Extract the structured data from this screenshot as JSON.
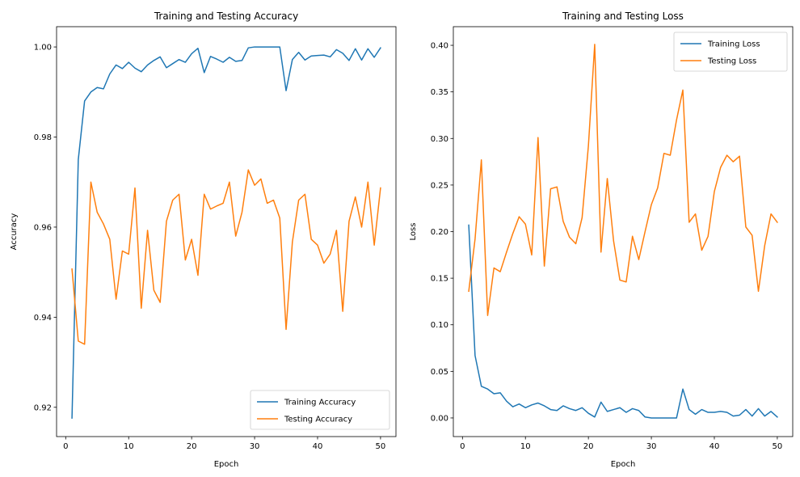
{
  "chart_data": [
    {
      "type": "line",
      "title": "Training and Testing Accuracy",
      "xlabel": "Epoch",
      "ylabel": "Accuracy",
      "xlim": [
        -1.45,
        52.45
      ],
      "ylim": [
        0.9135,
        1.0045
      ],
      "xticks": [
        0,
        10,
        20,
        30,
        40,
        50
      ],
      "yticks": [
        0.92,
        0.94,
        0.96,
        0.98,
        1.0
      ],
      "ytick_labels": [
        "0.92",
        "0.94",
        "0.96",
        "0.98",
        "1.00"
      ],
      "legend": "lower right",
      "series": [
        {
          "name": "Training Accuracy",
          "color": "#1f77b4",
          "x": [
            1,
            2,
            3,
            4,
            5,
            6,
            7,
            8,
            9,
            10,
            11,
            12,
            13,
            14,
            15,
            16,
            17,
            18,
            19,
            20,
            21,
            22,
            23,
            24,
            25,
            26,
            27,
            28,
            29,
            30,
            31,
            32,
            33,
            34,
            35,
            36,
            37,
            38,
            39,
            40,
            41,
            42,
            43,
            44,
            45,
            46,
            47,
            48,
            49,
            50
          ],
          "values": [
            0.9176,
            0.975,
            0.988,
            0.99,
            0.991,
            0.9907,
            0.994,
            0.996,
            0.9952,
            0.9966,
            0.9953,
            0.9945,
            0.996,
            0.997,
            0.9978,
            0.9954,
            0.9963,
            0.9972,
            0.9966,
            0.9985,
            0.9997,
            0.9943,
            0.9979,
            0.9973,
            0.9966,
            0.9977,
            0.9968,
            0.997,
            0.9998,
            1.0,
            1.0,
            1.0,
            1.0,
            1.0,
            0.9903,
            0.9972,
            0.9988,
            0.9971,
            0.998,
            0.9981,
            0.9982,
            0.9978,
            0.9994,
            0.9986,
            0.997,
            0.9996,
            0.9971,
            0.9996,
            0.9977,
            0.9998
          ]
        },
        {
          "name": "Testing Accuracy",
          "color": "#ff7f0e",
          "x": [
            1,
            2,
            3,
            4,
            5,
            6,
            7,
            8,
            9,
            10,
            11,
            12,
            13,
            14,
            15,
            16,
            17,
            18,
            19,
            20,
            21,
            22,
            23,
            24,
            25,
            26,
            27,
            28,
            29,
            30,
            31,
            32,
            33,
            34,
            35,
            36,
            37,
            38,
            39,
            40,
            41,
            42,
            43,
            44,
            45,
            46,
            47,
            48,
            49,
            50
          ],
          "values": [
            0.9507,
            0.9347,
            0.934,
            0.97,
            0.9633,
            0.9607,
            0.9573,
            0.944,
            0.9547,
            0.954,
            0.9687,
            0.942,
            0.9593,
            0.946,
            0.9433,
            0.9613,
            0.966,
            0.9673,
            0.9527,
            0.9573,
            0.9493,
            0.9673,
            0.964,
            0.9647,
            0.9653,
            0.97,
            0.958,
            0.9633,
            0.9727,
            0.9693,
            0.9707,
            0.9653,
            0.966,
            0.962,
            0.9373,
            0.9567,
            0.966,
            0.9673,
            0.9573,
            0.956,
            0.952,
            0.954,
            0.9593,
            0.9413,
            0.9613,
            0.9667,
            0.96,
            0.97,
            0.956,
            0.9687
          ]
        }
      ]
    },
    {
      "type": "line",
      "title": "Training and Testing Loss",
      "xlabel": "Epoch",
      "ylabel": "Loss",
      "xlim": [
        -1.45,
        52.45
      ],
      "ylim": [
        -0.02,
        0.42
      ],
      "xticks": [
        0,
        10,
        20,
        30,
        40,
        50
      ],
      "yticks": [
        0.0,
        0.05,
        0.1,
        0.15,
        0.2,
        0.25,
        0.3,
        0.35,
        0.4
      ],
      "ytick_labels": [
        "0.00",
        "0.05",
        "0.10",
        "0.15",
        "0.20",
        "0.25",
        "0.30",
        "0.35",
        "0.40"
      ],
      "legend": "upper right",
      "series": [
        {
          "name": "Training Loss",
          "color": "#1f77b4",
          "x": [
            1,
            2,
            3,
            4,
            5,
            6,
            7,
            8,
            9,
            10,
            11,
            12,
            13,
            14,
            15,
            16,
            17,
            18,
            19,
            20,
            21,
            22,
            23,
            24,
            25,
            26,
            27,
            28,
            29,
            30,
            31,
            32,
            33,
            34,
            35,
            36,
            37,
            38,
            39,
            40,
            41,
            42,
            43,
            44,
            45,
            46,
            47,
            48,
            49,
            50
          ],
          "values": [
            0.207,
            0.067,
            0.034,
            0.031,
            0.026,
            0.027,
            0.018,
            0.012,
            0.015,
            0.011,
            0.014,
            0.016,
            0.013,
            0.009,
            0.008,
            0.013,
            0.01,
            0.008,
            0.011,
            0.005,
            0.001,
            0.017,
            0.007,
            0.009,
            0.011,
            0.006,
            0.01,
            0.008,
            0.001,
            0.0,
            0.0,
            0.0,
            0.0,
            0.0,
            0.031,
            0.009,
            0.004,
            0.009,
            0.006,
            0.006,
            0.007,
            0.006,
            0.002,
            0.003,
            0.009,
            0.002,
            0.01,
            0.002,
            0.007,
            0.001
          ]
        },
        {
          "name": "Testing Loss",
          "color": "#ff7f0e",
          "x": [
            1,
            2,
            3,
            4,
            5,
            6,
            7,
            8,
            9,
            10,
            11,
            12,
            13,
            14,
            15,
            16,
            17,
            18,
            19,
            20,
            21,
            22,
            23,
            24,
            25,
            26,
            27,
            28,
            29,
            30,
            31,
            32,
            33,
            34,
            35,
            36,
            37,
            38,
            39,
            40,
            41,
            42,
            43,
            44,
            45,
            46,
            47,
            48,
            49,
            50
          ],
          "values": [
            0.136,
            0.192,
            0.277,
            0.11,
            0.161,
            0.157,
            0.178,
            0.198,
            0.216,
            0.208,
            0.175,
            0.301,
            0.163,
            0.246,
            0.248,
            0.211,
            0.194,
            0.187,
            0.215,
            0.292,
            0.401,
            0.178,
            0.257,
            0.19,
            0.148,
            0.146,
            0.195,
            0.17,
            0.2,
            0.229,
            0.247,
            0.284,
            0.282,
            0.32,
            0.352,
            0.21,
            0.219,
            0.18,
            0.195,
            0.243,
            0.269,
            0.282,
            0.275,
            0.281,
            0.205,
            0.196,
            0.136,
            0.185,
            0.219,
            0.21
          ]
        }
      ]
    }
  ]
}
